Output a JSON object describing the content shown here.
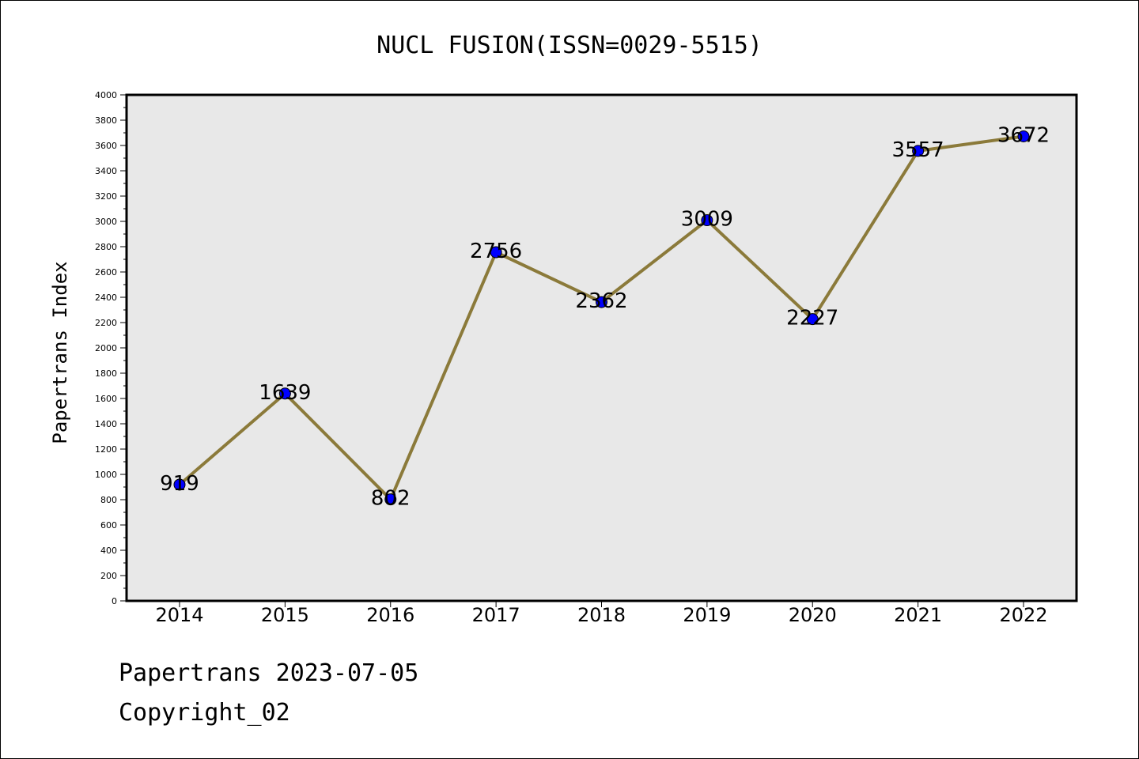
{
  "chart_data": {
    "type": "line",
    "title": "NUCL FUSION(ISSN=0029-5515)",
    "ylabel": "Papertrans Index",
    "xlabel": "",
    "categories": [
      "2014",
      "2015",
      "2016",
      "2017",
      "2018",
      "2019",
      "2020",
      "2021",
      "2022"
    ],
    "values": [
      919,
      1639,
      802,
      2756,
      2362,
      3009,
      2227,
      3557,
      3672
    ],
    "data_labels": [
      "919",
      "1639",
      "802",
      "2756",
      "2362",
      "3009",
      "2227",
      "3557",
      "3672"
    ],
    "ylim": [
      0,
      4000
    ],
    "yticks": [
      "0",
      "200",
      "400",
      "600",
      "800",
      "1000",
      "1200",
      "1400",
      "1600",
      "1800",
      "2000",
      "2200",
      "2400",
      "2600",
      "2800",
      "3000",
      "3200",
      "3400",
      "3600",
      "3800",
      "4000"
    ],
    "grid": false,
    "colors": {
      "line": "#8b7a3a",
      "marker": "#0000ff",
      "plot_bg": "#e8e8e8"
    }
  },
  "footer": {
    "line1": "Papertrans 2023-07-05",
    "line2": "Copyright_02"
  }
}
